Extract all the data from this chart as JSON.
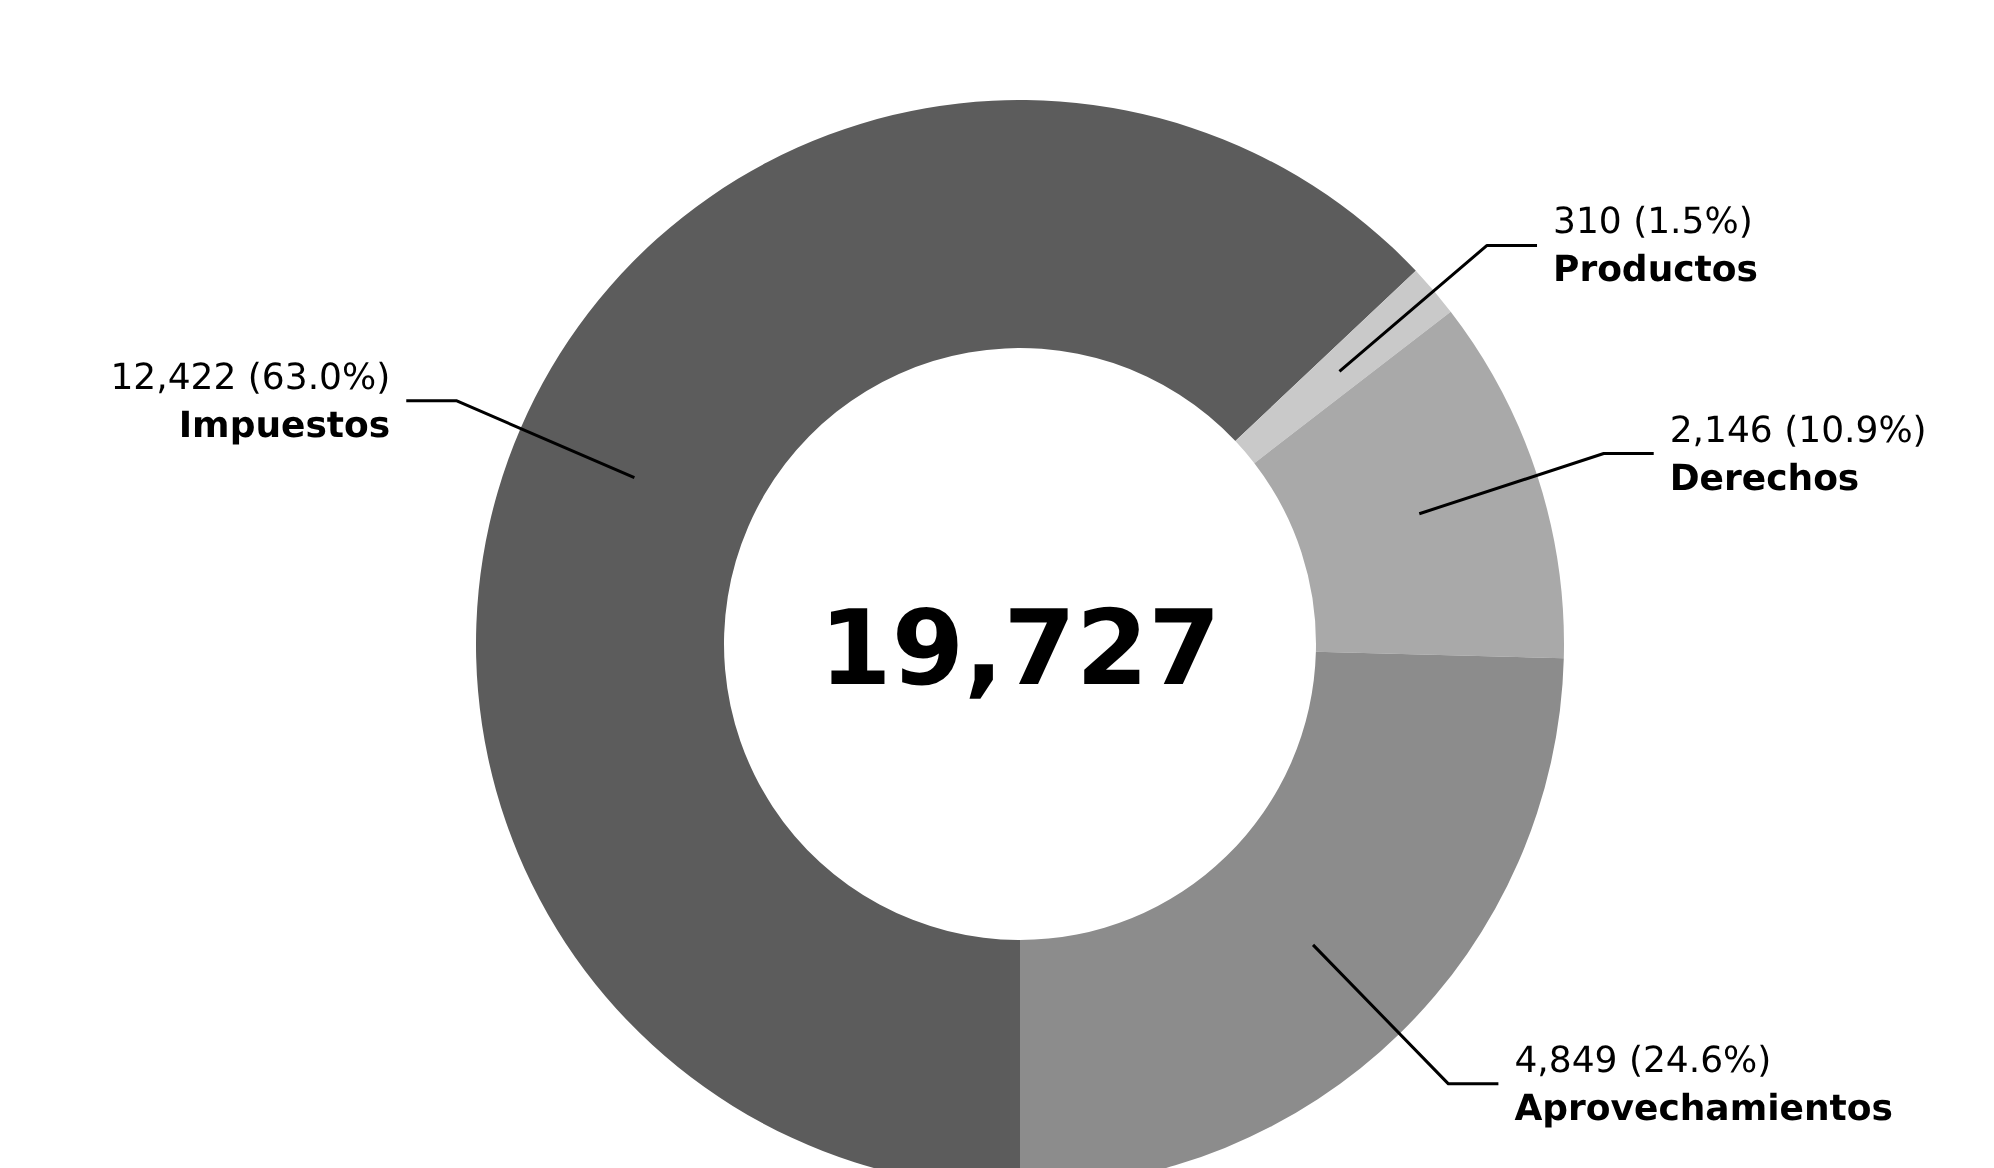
{
  "chart_data": {
    "type": "donut",
    "categories": [
      "Impuestos",
      "Productos",
      "Derechos",
      "Aprovechamientos"
    ],
    "values": [
      12422,
      310,
      2146,
      4849
    ],
    "colors": [
      "#5c5c5c",
      "#c9c9c9",
      "#a9a9a9",
      "#8c8c8c"
    ],
    "value_labels": [
      "12,422 (63.0%)",
      "310 (1.5%)",
      "2,146 (10.9%)",
      "4,849 (24.6%)"
    ],
    "annotations": [
      "19,727"
    ]
  }
}
